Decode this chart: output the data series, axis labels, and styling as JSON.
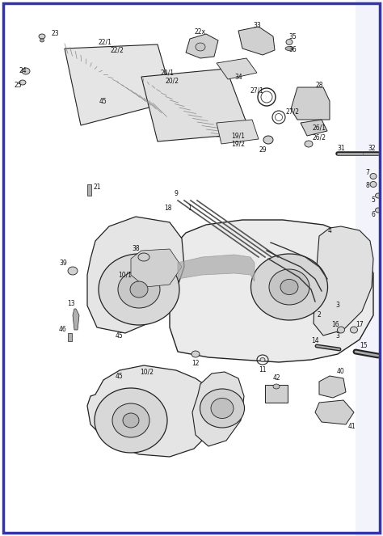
{
  "fig_width": 4.74,
  "fig_height": 6.63,
  "dpi": 100,
  "bg_color": "#ffffff",
  "outer_bg": "#f0f0f8",
  "border_color": "#3333aa",
  "border_lw": 2.5,
  "diagram_bg": "#f8f8f8",
  "line_color": "#222222",
  "fill_light": "#e8e8e8",
  "fill_mid": "#d0d0d0",
  "fill_dark": "#b0b0b0"
}
